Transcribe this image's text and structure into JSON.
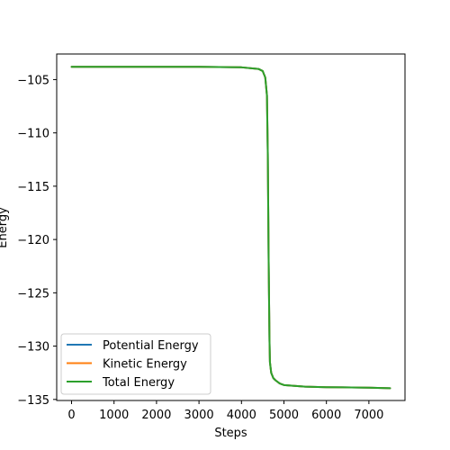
{
  "chart_data": {
    "type": "line",
    "title": "",
    "xlabel": "Steps",
    "ylabel": "Energy",
    "xlim": [
      -350,
      7850
    ],
    "ylim": [
      -135.1,
      -102.6
    ],
    "xticks": [
      0,
      1000,
      2000,
      3000,
      4000,
      5000,
      6000,
      7000
    ],
    "yticks": [
      -105,
      -110,
      -115,
      -120,
      -125,
      -130,
      -135
    ],
    "ytick_labels": [
      "−105",
      "−110",
      "−115",
      "−120",
      "−125",
      "−130",
      "−135"
    ],
    "grid": false,
    "legend_position": "lower-left",
    "series": [
      {
        "name": "Potential Energy",
        "color": "#1f77b4",
        "x": [
          0,
          1000,
          2000,
          3000,
          4000,
          4400,
          4500,
          4560,
          4600,
          4620,
          4640,
          4660,
          4670,
          4700,
          4750,
          4800,
          4900,
          5000,
          5500,
          6000,
          7000,
          7500
        ],
        "y": [
          -103.8,
          -103.8,
          -103.8,
          -103.8,
          -103.85,
          -104.0,
          -104.2,
          -104.8,
          -106.5,
          -112.0,
          -122.0,
          -129.5,
          -131.5,
          -132.5,
          -133.0,
          -133.2,
          -133.5,
          -133.65,
          -133.8,
          -133.85,
          -133.9,
          -133.95
        ]
      },
      {
        "name": "Kinetic Energy",
        "color": "#ff7f0e",
        "x": [
          0,
          1000,
          2000,
          3000,
          4000,
          4400,
          4500,
          4560,
          4600,
          4620,
          4640,
          4660,
          4670,
          4700,
          4750,
          4800,
          4900,
          5000,
          5500,
          6000,
          7000,
          7500
        ],
        "y": [
          -103.8,
          -103.8,
          -103.8,
          -103.8,
          -103.85,
          -104.0,
          -104.2,
          -104.8,
          -106.5,
          -112.0,
          -122.0,
          -129.5,
          -131.5,
          -132.5,
          -133.0,
          -133.2,
          -133.5,
          -133.65,
          -133.8,
          -133.85,
          -133.9,
          -133.95
        ]
      },
      {
        "name": "Total Energy",
        "color": "#2ca02c",
        "x": [
          0,
          1000,
          2000,
          3000,
          4000,
          4400,
          4500,
          4560,
          4600,
          4620,
          4640,
          4660,
          4670,
          4700,
          4750,
          4800,
          4900,
          5000,
          5500,
          6000,
          7000,
          7500
        ],
        "y": [
          -103.8,
          -103.8,
          -103.8,
          -103.8,
          -103.85,
          -104.0,
          -104.2,
          -104.8,
          -106.5,
          -112.0,
          -122.0,
          -129.5,
          -131.5,
          -132.5,
          -133.0,
          -133.2,
          -133.5,
          -133.65,
          -133.8,
          -133.85,
          -133.9,
          -133.95
        ]
      }
    ]
  }
}
